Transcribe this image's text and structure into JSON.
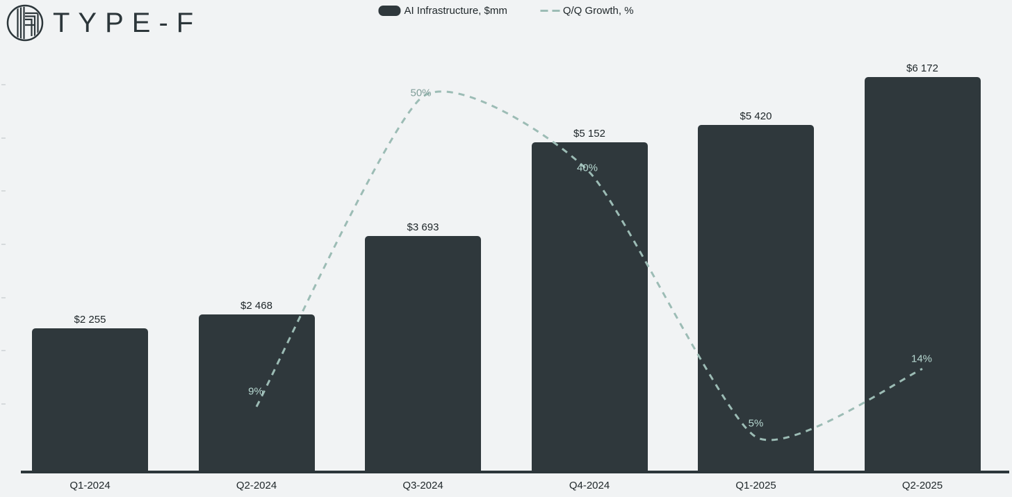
{
  "brand": {
    "name": "TYPE-F"
  },
  "legend": {
    "items": [
      {
        "label": "AI Infrastructure, $mm",
        "swatch": "bar"
      },
      {
        "label": "Q/Q Growth, %",
        "swatch": "dashed-line"
      }
    ]
  },
  "chart_data": {
    "type": "bar-line-combo",
    "title": "",
    "categories": [
      "Q1-2024",
      "Q2-2024",
      "Q3-2024",
      "Q4-2024",
      "Q1-2025",
      "Q2-2025"
    ],
    "series": [
      {
        "name": "AI Infrastructure, $mm",
        "type": "bar",
        "color": "#2f383c",
        "values": [
          2255,
          2468,
          3693,
          5152,
          5420,
          6172
        ],
        "value_labels": [
          "$2 255",
          "$2 468",
          "$3 693",
          "$5 152",
          "$5 420",
          "$6 172"
        ]
      },
      {
        "name": "Q/Q Growth, %",
        "type": "line",
        "line_style": "dashed",
        "color": "#9cbcb5",
        "values": [
          null,
          9,
          50,
          40,
          5,
          14
        ],
        "value_labels": [
          null,
          "9%",
          "50%",
          "40%",
          "5%",
          "14%"
        ],
        "label_color_on_bar": "#b7d8d1",
        "label_color_on_background": "#7f9d98"
      }
    ],
    "value_axis": {
      "min": 0,
      "max": 6500,
      "labels_shown": false
    },
    "growth_axis": {
      "min": 0,
      "max": 55,
      "unit": "%",
      "labels_shown": false
    },
    "legend_position": "top-center",
    "grid": false,
    "background_color": "#f1f3f4"
  }
}
